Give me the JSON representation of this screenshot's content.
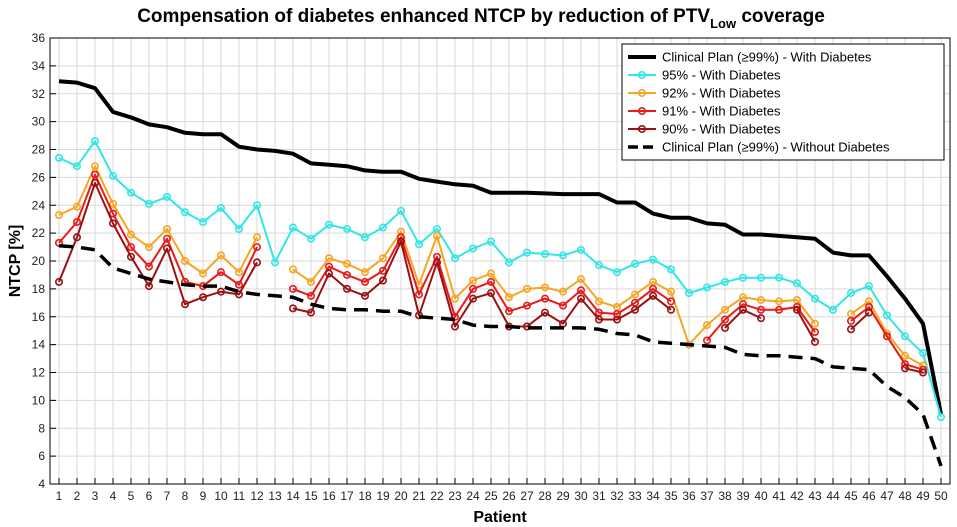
{
  "chart_data": {
    "type": "line",
    "title": "Compensation of diabetes enhanced NTCP by reduction of PTV",
    "title_subscript": "Low",
    "title_suffix": " coverage",
    "xlabel": "Patient",
    "ylabel": "NTCP [%]",
    "xlim": [
      0.5,
      50.5
    ],
    "ylim": [
      4,
      36
    ],
    "grid": true,
    "legend_position": "top-right",
    "x": [
      1,
      2,
      3,
      4,
      5,
      6,
      7,
      8,
      9,
      10,
      11,
      12,
      13,
      14,
      15,
      16,
      17,
      18,
      19,
      20,
      21,
      22,
      23,
      24,
      25,
      26,
      27,
      28,
      29,
      30,
      31,
      32,
      33,
      34,
      35,
      36,
      37,
      38,
      39,
      40,
      41,
      42,
      43,
      44,
      45,
      46,
      47,
      48,
      49,
      50
    ],
    "x_tick_labels": [
      "1",
      "2",
      "3",
      "4",
      "5",
      "6",
      "7",
      "8",
      "9",
      "10",
      "11",
      "12",
      "13",
      "14",
      "15",
      "16",
      "17",
      "18",
      "19",
      "20",
      "21",
      "22",
      "23",
      "24",
      "25",
      "26",
      "27",
      "28",
      "29",
      "30",
      "31",
      "32",
      "33",
      "34",
      "35",
      "36",
      "37",
      "38",
      "39",
      "40",
      "41",
      "42",
      "43",
      "44",
      "45",
      "46",
      "47",
      "48",
      "49",
      "50"
    ],
    "y_ticks": [
      4,
      6,
      8,
      10,
      12,
      14,
      16,
      18,
      20,
      22,
      24,
      26,
      28,
      30,
      32,
      34,
      36
    ],
    "y_tick_labels": [
      "4",
      "6",
      "8",
      "10",
      "12",
      "14",
      "16",
      "18",
      "20",
      "22",
      "24",
      "26",
      "28",
      "30",
      "32",
      "34",
      "36"
    ],
    "series": [
      {
        "name": "Clinical Plan (≥99%) - With Diabetes",
        "color": "#000000",
        "dash": "solid",
        "marker": false,
        "width": 4,
        "values": [
          32.9,
          32.8,
          32.4,
          30.7,
          30.3,
          29.8,
          29.6,
          29.2,
          29.1,
          29.1,
          28.2,
          28.0,
          27.9,
          27.7,
          27.0,
          26.9,
          26.8,
          26.5,
          26.4,
          26.4,
          25.9,
          25.7,
          25.5,
          25.4,
          24.9,
          24.9,
          24.9,
          24.85,
          24.8,
          24.8,
          24.8,
          24.2,
          24.2,
          23.4,
          23.1,
          23.1,
          22.7,
          22.6,
          21.9,
          21.9,
          21.8,
          21.7,
          21.6,
          20.6,
          20.4,
          20.4,
          18.9,
          17.3,
          15.5,
          9.0
        ]
      },
      {
        "name": "95% - With Diabetes",
        "color": "#33e6e6",
        "dash": "solid",
        "marker": true,
        "width": 2,
        "values": [
          27.4,
          26.8,
          28.6,
          26.1,
          24.9,
          24.1,
          24.6,
          23.5,
          22.8,
          23.8,
          22.3,
          24.0,
          19.9,
          22.4,
          21.6,
          22.6,
          22.3,
          21.7,
          22.4,
          23.6,
          21.2,
          22.3,
          20.2,
          20.9,
          21.4,
          19.9,
          20.6,
          20.5,
          20.4,
          20.8,
          19.7,
          19.2,
          19.8,
          20.1,
          19.4,
          17.7,
          18.1,
          18.5,
          18.8,
          18.8,
          18.8,
          18.4,
          17.3,
          16.5,
          17.7,
          18.2,
          16.1,
          14.6,
          13.4,
          8.8
        ]
      },
      {
        "name": "92% - With Diabetes",
        "color": "#f5a623",
        "dash": "solid",
        "marker": true,
        "width": 2,
        "values": [
          23.3,
          23.9,
          26.8,
          24.1,
          21.9,
          21.0,
          22.3,
          20.0,
          19.1,
          20.4,
          19.2,
          21.7,
          null,
          19.4,
          18.5,
          20.2,
          19.8,
          19.2,
          20.2,
          22.1,
          18.3,
          21.8,
          17.3,
          18.6,
          19.1,
          17.4,
          18.0,
          18.1,
          17.8,
          18.7,
          17.1,
          16.7,
          17.6,
          18.5,
          17.8,
          14.0,
          15.4,
          16.5,
          17.4,
          17.2,
          17.1,
          17.2,
          15.5,
          null,
          16.2,
          17.1,
          14.8,
          13.2,
          12.5,
          null
        ]
      },
      {
        "name": "91% - With Diabetes",
        "color": "#e81a1a",
        "dash": "solid",
        "marker": true,
        "width": 2,
        "values": [
          21.3,
          22.8,
          26.2,
          23.4,
          21.0,
          19.6,
          21.6,
          18.5,
          18.2,
          19.2,
          18.3,
          21.0,
          null,
          18.0,
          17.5,
          19.6,
          19.0,
          18.5,
          19.3,
          21.7,
          17.6,
          20.3,
          16.0,
          18.0,
          18.5,
          16.4,
          16.8,
          17.3,
          16.8,
          17.9,
          16.3,
          16.2,
          17.0,
          18.0,
          17.1,
          null,
          14.3,
          15.8,
          16.9,
          16.5,
          16.5,
          16.7,
          14.9,
          null,
          15.7,
          16.7,
          14.6,
          12.6,
          12.2,
          null
        ]
      },
      {
        "name": "90% - With Diabetes",
        "color": "#9b1010",
        "dash": "solid",
        "marker": true,
        "width": 2,
        "values": [
          18.5,
          21.7,
          25.6,
          22.7,
          20.3,
          18.2,
          20.9,
          16.9,
          17.4,
          17.8,
          17.6,
          19.9,
          null,
          16.6,
          16.3,
          19.1,
          18.0,
          17.5,
          18.6,
          21.4,
          16.1,
          19.9,
          15.3,
          17.3,
          17.7,
          15.3,
          15.3,
          16.3,
          15.5,
          17.3,
          15.8,
          15.8,
          16.5,
          17.5,
          16.5,
          null,
          null,
          15.2,
          16.5,
          15.9,
          null,
          16.5,
          14.2,
          null,
          15.1,
          16.3,
          null,
          12.3,
          12.0,
          null
        ]
      },
      {
        "name": "Clinical Plan (≥99%) - Without Diabetes",
        "color": "#000000",
        "dash": "dashed",
        "marker": false,
        "width": 3.5,
        "values": [
          21.1,
          21.0,
          20.8,
          19.5,
          19.1,
          18.7,
          18.5,
          18.3,
          18.2,
          18.2,
          17.8,
          17.6,
          17.5,
          17.4,
          16.9,
          16.6,
          16.5,
          16.5,
          16.4,
          16.4,
          16.0,
          15.9,
          15.8,
          15.4,
          15.3,
          15.3,
          15.2,
          15.2,
          15.2,
          15.2,
          15.1,
          14.8,
          14.7,
          14.2,
          14.1,
          14.0,
          13.9,
          13.8,
          13.3,
          13.2,
          13.2,
          13.1,
          13.0,
          12.4,
          12.3,
          12.2,
          11.0,
          10.2,
          9.0,
          5.3
        ]
      }
    ]
  }
}
